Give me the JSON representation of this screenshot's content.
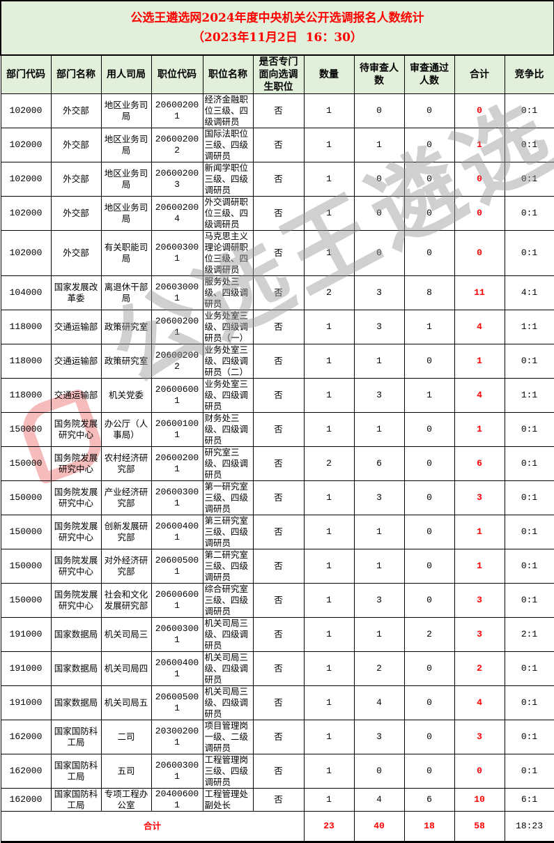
{
  "title": {
    "line1": "公选王遴选网2024年度中央机关公开选调报名人数统计",
    "line2": "（2023年11月2日  16：30）"
  },
  "columns": [
    "部门代码",
    "部门名称",
    "用人司局",
    "职位代码",
    "职位名称",
    "是否专门面向选调生职位",
    "数量",
    "待审查人数",
    "审查通过人数",
    "合计",
    "竞争比"
  ],
  "rows": [
    [
      "102000",
      "外交部",
      "地区业务司局",
      "206002001",
      "经济金融职位三级、四级调研员",
      "否",
      "1",
      "0",
      "0",
      "0",
      "0:1"
    ],
    [
      "102000",
      "外交部",
      "地区业务司局",
      "206002002",
      "国际法职位三级、四级调研员",
      "否",
      "1",
      "1",
      "0",
      "1",
      "0:1"
    ],
    [
      "102000",
      "外交部",
      "地区业务司局",
      "206002003",
      "新闻学职位三级、四级调研员",
      "否",
      "1",
      "0",
      "0",
      "0",
      "0:1"
    ],
    [
      "102000",
      "外交部",
      "地区业务司局",
      "206002004",
      "外交调研职位三级、四级调研员",
      "否",
      "1",
      "0",
      "0",
      "0",
      "0:1"
    ],
    [
      "102000",
      "外交部",
      "有关职能司局",
      "206003001",
      "马克思主义理论调研职位三级、四级调研员",
      "否",
      "1",
      "0",
      "0",
      "0",
      "0:1"
    ],
    [
      "104000",
      "国家发展改革委",
      "离退休干部局",
      "206030001",
      "服务处三级、四级调研员",
      "否",
      "2",
      "3",
      "8",
      "11",
      "4:1"
    ],
    [
      "118000",
      "交通运输部",
      "政策研究室",
      "206002001",
      "业务处室三级、四级调研员（一）",
      "否",
      "1",
      "3",
      "1",
      "4",
      "1:1"
    ],
    [
      "118000",
      "交通运输部",
      "政策研究室",
      "206002002",
      "业务处室三级、四级调研员（二）",
      "否",
      "1",
      "1",
      "0",
      "1",
      "0:1"
    ],
    [
      "118000",
      "交通运输部",
      "机关党委",
      "206006001",
      "业务处室三级、四级调研员",
      "否",
      "1",
      "3",
      "1",
      "4",
      "1:1"
    ],
    [
      "150000",
      "国务院发展研究中心",
      "办公厅（人事局）",
      "206001001",
      "财务处三级、四级调研员",
      "否",
      "1",
      "1",
      "0",
      "1",
      "0:1"
    ],
    [
      "150000",
      "国务院发展研究中心",
      "农村经济研究部",
      "206002001",
      "研究室三级、四级调研员",
      "否",
      "2",
      "6",
      "0",
      "6",
      "0:1"
    ],
    [
      "150000",
      "国务院发展研究中心",
      "产业经济研究部",
      "206003001",
      "第一研究室三级、四级调研员",
      "否",
      "1",
      "3",
      "0",
      "3",
      "0:1"
    ],
    [
      "150000",
      "国务院发展研究中心",
      "创新发展研究部",
      "206004001",
      "第三研究室三级、四级调研员",
      "否",
      "1",
      "1",
      "0",
      "1",
      "0:1"
    ],
    [
      "150000",
      "国务院发展研究中心",
      "对外经济研究部",
      "206005001",
      "第二研究室三级、四级调研员",
      "否",
      "1",
      "1",
      "0",
      "1",
      "0:1"
    ],
    [
      "150000",
      "国务院发展研究中心",
      "社会和文化发展研究部",
      "206006001",
      "综合研究室三级、四级调研员",
      "否",
      "1",
      "3",
      "0",
      "3",
      "0:1"
    ],
    [
      "191000",
      "国家数据局",
      "机关司局三",
      "206003001",
      "机关司局三级、四级调研员",
      "否",
      "1",
      "1",
      "2",
      "3",
      "2:1"
    ],
    [
      "191000",
      "国家数据局",
      "机关司局四",
      "206004001",
      "机关司局三级、四级调研员",
      "否",
      "1",
      "2",
      "0",
      "2",
      "0:1"
    ],
    [
      "191000",
      "国家数据局",
      "机关司局五",
      "206005001",
      "机关司局三级、四级调研员",
      "否",
      "1",
      "4",
      "0",
      "4",
      "0:1"
    ],
    [
      "162000",
      "国家国防科工局",
      "二司",
      "203002001",
      "项目管理岗一级、二级调研员",
      "否",
      "1",
      "3",
      "0",
      "3",
      "0:1"
    ],
    [
      "162000",
      "国家国防科工局",
      "五司",
      "206003001",
      "工程管理岗三级、四级调研员",
      "否",
      "1",
      "0",
      "0",
      "0",
      "0:1"
    ],
    [
      "162000",
      "国家国防科工局",
      "专项工程办公室",
      "204006001",
      "工程管理处副处长",
      "否",
      "1",
      "4",
      "6",
      "10",
      "6:1"
    ]
  ],
  "total": {
    "label": "合计",
    "count": "23",
    "pending": "40",
    "passed": "18",
    "sum": "58",
    "ratio": "18:23"
  },
  "watermark": {
    "text": "公选王遴选"
  },
  "colors": {
    "title_red": "#ff0000",
    "header_bg": "#e2efda",
    "sum_red": "#ff0000"
  }
}
